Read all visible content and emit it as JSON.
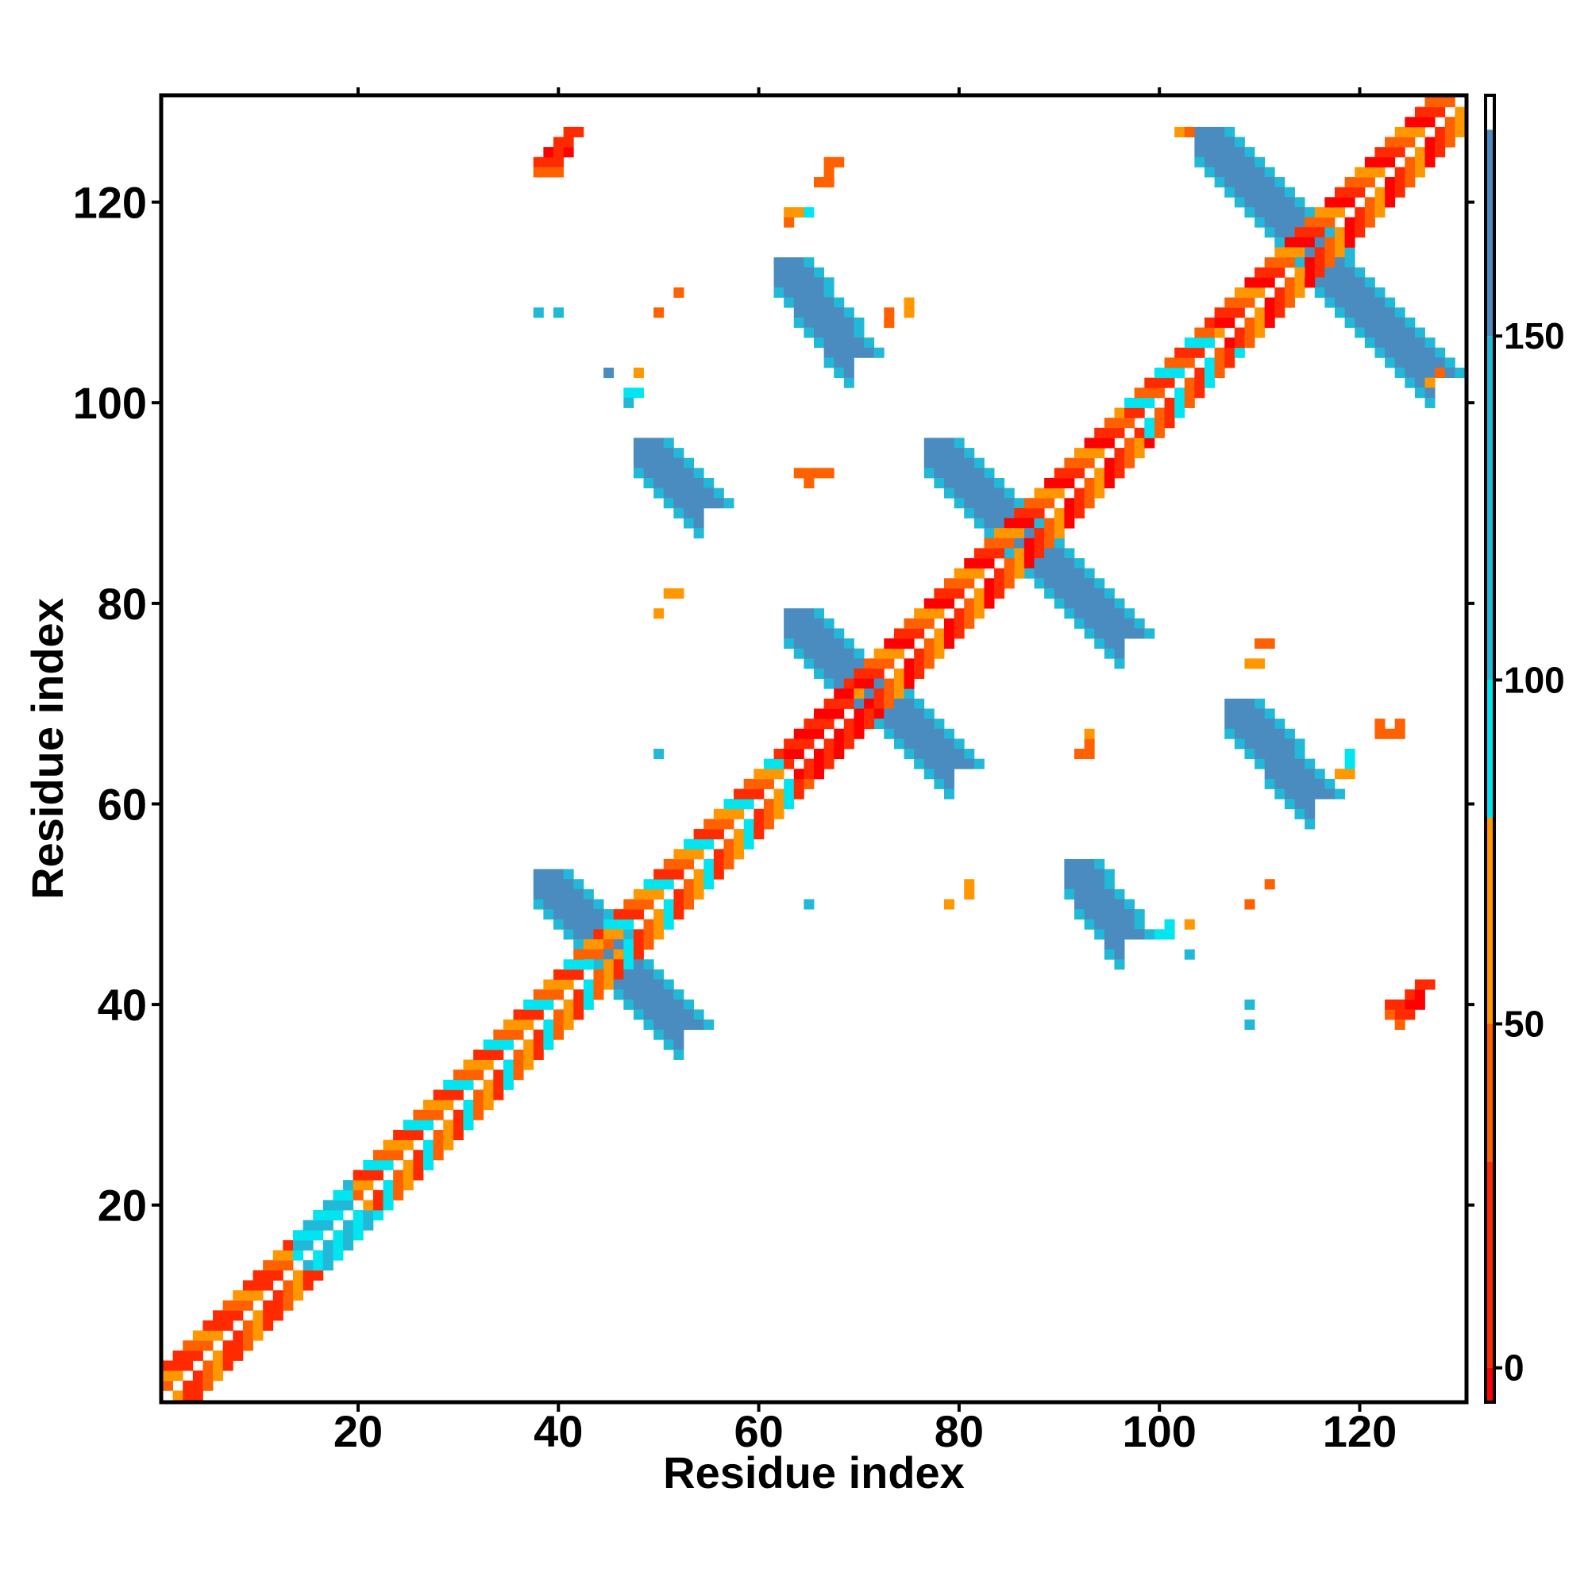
{
  "chart_data": {
    "type": "heatmap",
    "title": "",
    "xlabel": "Residue index",
    "ylabel": "Residue index",
    "xlim": [
      0.5,
      130.5
    ],
    "ylim": [
      0.5,
      130.5
    ],
    "x_ticks": [
      20,
      40,
      60,
      80,
      100,
      120
    ],
    "y_ticks": [
      20,
      40,
      60,
      80,
      100,
      120
    ],
    "colorbar": {
      "min": -5,
      "max": 185,
      "ticks": [
        0,
        50,
        100,
        150
      ],
      "bands": [
        {
          "from": -5,
          "to": 0,
          "color": "#ff0000"
        },
        {
          "from": 0,
          "to": 30,
          "color": "#ff2a00"
        },
        {
          "from": 30,
          "to": 50,
          "color": "#ff6000"
        },
        {
          "from": 50,
          "to": 80,
          "color": "#ff9800"
        },
        {
          "from": 80,
          "to": 100,
          "color": "#00e5f0"
        },
        {
          "from": 100,
          "to": 150,
          "color": "#22b8d8"
        },
        {
          "from": 150,
          "to": 180,
          "color": "#4a8cc0"
        },
        {
          "from": 180,
          "to": 185,
          "color": "#ffffff"
        }
      ]
    },
    "diagonal": {
      "band_offsets": [
        1,
        2,
        3
      ],
      "segments": [
        {
          "from": 1,
          "to": 20,
          "palette": [
            "#ff2a00",
            "#ff6000",
            "#ff9800",
            "#ff2a00"
          ]
        },
        {
          "from": 14,
          "to": 20,
          "palette": [
            "#00e5f0",
            "#22b8d8"
          ]
        },
        {
          "from": 20,
          "to": 45,
          "palette": [
            "#ff6000",
            "#ff9800",
            "#ff2a00",
            "#00e5f0"
          ]
        },
        {
          "from": 45,
          "to": 63,
          "palette": [
            "#ff2a00",
            "#ff6000",
            "#ff9800",
            "#00e5f0"
          ]
        },
        {
          "from": 63,
          "to": 70,
          "palette": [
            "#ff0000",
            "#ff2a00"
          ]
        },
        {
          "from": 70,
          "to": 97,
          "palette": [
            "#ff2a00",
            "#ff6000",
            "#ff9800",
            "#ff0000"
          ]
        },
        {
          "from": 97,
          "to": 106,
          "palette": [
            "#00e5f0",
            "#ff6000",
            "#ff2a00"
          ]
        },
        {
          "from": 106,
          "to": 130,
          "palette": [
            "#ff2a00",
            "#ff6000",
            "#ff9800",
            "#ff0000"
          ]
        }
      ]
    },
    "blocks": [
      {
        "x": [
          44,
          52
        ],
        "y": [
          45,
          53
        ],
        "color": "#4a8cc0",
        "note": "anti-diagonal hairpin"
      },
      {
        "x": [
          45,
          53
        ],
        "y": [
          38,
          46
        ],
        "color": "#4a8cc0"
      },
      {
        "x": [
          63,
          71
        ],
        "y": [
          71,
          79
        ],
        "color": "#4a8cc0"
      },
      {
        "x": [
          71,
          79
        ],
        "y": [
          64,
          72
        ],
        "color": "#4a8cc0"
      },
      {
        "x": [
          77,
          86
        ],
        "y": [
          87,
          96
        ],
        "color": "#4a8cc0"
      },
      {
        "x": [
          87,
          97
        ],
        "y": [
          77,
          86
        ],
        "color": "#4a8cc0"
      },
      {
        "x": [
          104,
          113
        ],
        "y": [
          116,
          127
        ],
        "color": "#4a8cc0"
      },
      {
        "x": [
          115,
          127
        ],
        "y": [
          103,
          114
        ],
        "color": "#4a8cc0"
      }
    ],
    "strands": [
      {
        "start": [
          38,
          53
        ],
        "end": [
          52,
          38
        ],
        "width": 3,
        "color": "#4a8cc0"
      },
      {
        "start": [
          63,
          79
        ],
        "end": [
          79,
          64
        ],
        "width": 3,
        "color": "#4a8cc0"
      },
      {
        "start": [
          77,
          96
        ],
        "end": [
          96,
          77
        ],
        "width": 3,
        "color": "#4a8cc0"
      },
      {
        "start": [
          104,
          127
        ],
        "end": [
          127,
          103
        ],
        "width": 3,
        "color": "#4a8cc0"
      },
      {
        "start": [
          48,
          96
        ],
        "end": [
          54,
          90
        ],
        "width": 3,
        "color": "#4a8cc0"
      },
      {
        "start": [
          62,
          114
        ],
        "end": [
          69,
          105
        ],
        "width": 3,
        "color": "#4a8cc0"
      },
      {
        "start": [
          91,
          54
        ],
        "end": [
          96,
          47
        ],
        "width": 3,
        "color": "#4a8cc0"
      },
      {
        "start": [
          107,
          70
        ],
        "end": [
          115,
          61
        ],
        "width": 3,
        "color": "#4a8cc0"
      }
    ],
    "strand_edges": [
      {
        "start": [
          38,
          53
        ],
        "end": [
          52,
          38
        ],
        "color": "#22b8d8"
      },
      {
        "start": [
          63,
          79
        ],
        "end": [
          79,
          64
        ],
        "color": "#22b8d8"
      },
      {
        "start": [
          77,
          96
        ],
        "end": [
          96,
          77
        ],
        "color": "#22b8d8"
      },
      {
        "start": [
          104,
          127
        ],
        "end": [
          127,
          103
        ],
        "color": "#22b8d8"
      },
      {
        "start": [
          48,
          96
        ],
        "end": [
          54,
          90
        ],
        "color": "#22b8d8"
      },
      {
        "start": [
          62,
          114
        ],
        "end": [
          69,
          105
        ],
        "color": "#22b8d8"
      },
      {
        "start": [
          91,
          54
        ],
        "end": [
          96,
          47
        ],
        "color": "#22b8d8"
      },
      {
        "start": [
          107,
          70
        ],
        "end": [
          115,
          61
        ],
        "color": "#22b8d8"
      }
    ],
    "cells": [
      [
        38,
        124,
        "#ff2a00"
      ],
      [
        39,
        124,
        "#ff2a00"
      ],
      [
        40,
        124,
        "#ff2a00"
      ],
      [
        39,
        125,
        "#ff0000"
      ],
      [
        40,
        125,
        "#ff2a00"
      ],
      [
        41,
        125,
        "#ff0000"
      ],
      [
        40,
        126,
        "#ff2a00"
      ],
      [
        41,
        126,
        "#ff2a00"
      ],
      [
        42,
        127,
        "#ff2a00"
      ],
      [
        41,
        127,
        "#ff2a00"
      ],
      [
        39,
        123,
        "#ff6000"
      ],
      [
        38,
        123,
        "#ff6000"
      ],
      [
        40,
        123,
        "#ff6000"
      ],
      [
        124,
        40,
        "#ff2a00"
      ],
      [
        124,
        39,
        "#ff2a00"
      ],
      [
        124,
        38,
        "#ff6000"
      ],
      [
        125,
        40,
        "#ff0000"
      ],
      [
        125,
        41,
        "#ff2a00"
      ],
      [
        126,
        41,
        "#ff0000"
      ],
      [
        126,
        42,
        "#ff2a00"
      ],
      [
        127,
        42,
        "#ff2a00"
      ],
      [
        123,
        39,
        "#ff6000"
      ],
      [
        123,
        40,
        "#ff2a00"
      ],
      [
        125,
        39,
        "#ff2a00"
      ],
      [
        126,
        40,
        "#ff0000"
      ],
      [
        67,
        124,
        "#ff6000"
      ],
      [
        68,
        124,
        "#ff6000"
      ],
      [
        67,
        123,
        "#ff6000"
      ],
      [
        66,
        122,
        "#ff6000"
      ],
      [
        67,
        122,
        "#ff6000"
      ],
      [
        63,
        119,
        "#ff9800"
      ],
      [
        64,
        119,
        "#ff9800"
      ],
      [
        65,
        119,
        "#00e5f0"
      ],
      [
        63,
        118,
        "#ff6000"
      ],
      [
        38,
        109,
        "#22b8d8"
      ],
      [
        40,
        109,
        "#22b8d8"
      ],
      [
        50,
        109,
        "#ff6000"
      ],
      [
        52,
        111,
        "#ff6000"
      ],
      [
        45,
        103,
        "#4a8cc0"
      ],
      [
        48,
        103,
        "#ff9800"
      ],
      [
        47,
        101,
        "#00e5f0"
      ],
      [
        48,
        101,
        "#00e5f0"
      ],
      [
        47,
        100,
        "#22b8d8"
      ],
      [
        73,
        108,
        "#ff6000"
      ],
      [
        73,
        109,
        "#ff6000"
      ],
      [
        75,
        109,
        "#ff9800"
      ],
      [
        75,
        110,
        "#ff9800"
      ],
      [
        64,
        93,
        "#ff6000"
      ],
      [
        65,
        93,
        "#ff6000"
      ],
      [
        66,
        93,
        "#ff6000"
      ],
      [
        67,
        93,
        "#ff6000"
      ],
      [
        65,
        92,
        "#ff6000"
      ],
      [
        51,
        81,
        "#ff9800"
      ],
      [
        52,
        81,
        "#ff9800"
      ],
      [
        50,
        79,
        "#ff9800"
      ],
      [
        50,
        65,
        "#22b8d8"
      ],
      [
        65,
        50,
        "#22b8d8"
      ],
      [
        79,
        50,
        "#ff9800"
      ],
      [
        81,
        51,
        "#ff9800"
      ],
      [
        81,
        52,
        "#ff9800"
      ],
      [
        93,
        65,
        "#ff6000"
      ],
      [
        92,
        65,
        "#ff6000"
      ],
      [
        93,
        66,
        "#ff6000"
      ],
      [
        93,
        67,
        "#ff9800"
      ],
      [
        109,
        74,
        "#ff9800"
      ],
      [
        110,
        74,
        "#ff9800"
      ],
      [
        110,
        76,
        "#ff6000"
      ],
      [
        111,
        76,
        "#ff6000"
      ],
      [
        118,
        63,
        "#ff9800"
      ],
      [
        119,
        63,
        "#ff9800"
      ],
      [
        119,
        64,
        "#00e5f0"
      ],
      [
        119,
        65,
        "#00e5f0"
      ],
      [
        122,
        67,
        "#ff6000"
      ],
      [
        123,
        67,
        "#ff6000"
      ],
      [
        124,
        67,
        "#ff6000"
      ],
      [
        122,
        68,
        "#ff6000"
      ],
      [
        124,
        68,
        "#ff6000"
      ],
      [
        100,
        47,
        "#00e5f0"
      ],
      [
        101,
        47,
        "#00e5f0"
      ],
      [
        101,
        48,
        "#00e5f0"
      ],
      [
        103,
        48,
        "#ff9800"
      ],
      [
        103,
        45,
        "#22b8d8"
      ],
      [
        109,
        40,
        "#22b8d8"
      ],
      [
        109,
        38,
        "#22b8d8"
      ],
      [
        109,
        50,
        "#ff6000"
      ],
      [
        111,
        52,
        "#ff6000"
      ],
      [
        102,
        127,
        "#ff9800"
      ],
      [
        103,
        127,
        "#ff6000"
      ],
      [
        127,
        102,
        "#ff9800"
      ],
      [
        128,
        103,
        "#ff6000"
      ]
    ]
  }
}
